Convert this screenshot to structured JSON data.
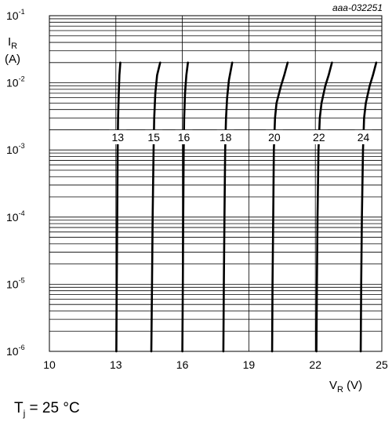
{
  "chart_data": {
    "type": "line",
    "figure_id": "aaa-032251",
    "condition_label": "T",
    "condition_sub": "j",
    "condition_value": " = 25 °C",
    "x_axis": {
      "label": "V",
      "label_sub": "R",
      "unit": "(V)",
      "range": [
        10,
        25
      ],
      "ticks": [
        10,
        13,
        16,
        19,
        22,
        25
      ]
    },
    "y_axis": {
      "label": "I",
      "label_sub": "R",
      "unit": "(A)",
      "scale": "log",
      "range": [
        1e-06,
        0.1
      ],
      "tick_base": "10",
      "tick_exponents": [
        "-6",
        "-5",
        "-4",
        "-3",
        "-2",
        "-1"
      ]
    },
    "grid": true,
    "series": [
      {
        "name": "13",
        "label_y": 0.00155,
        "points": [
          [
            13.02,
            1e-06
          ],
          [
            13.04,
            1e-05
          ],
          [
            13.06,
            0.0001
          ],
          [
            13.08,
            0.001
          ],
          [
            13.1,
            0.003
          ],
          [
            13.13,
            0.007
          ],
          [
            13.16,
            0.013
          ],
          [
            13.2,
            0.02
          ]
        ]
      },
      {
        "name": "15",
        "label_y": 0.00155,
        "points": [
          [
            14.6,
            1e-06
          ],
          [
            14.63,
            1e-05
          ],
          [
            14.66,
            0.0001
          ],
          [
            14.7,
            0.001
          ],
          [
            14.73,
            0.003
          ],
          [
            14.78,
            0.007
          ],
          [
            14.86,
            0.013
          ],
          [
            15.0,
            0.02
          ]
        ]
      },
      {
        "name": "16",
        "label_y": 0.00155,
        "points": [
          [
            16.0,
            1e-06
          ],
          [
            16.02,
            1e-05
          ],
          [
            16.04,
            0.0001
          ],
          [
            16.06,
            0.001
          ],
          [
            16.08,
            0.003
          ],
          [
            16.12,
            0.007
          ],
          [
            16.18,
            0.013
          ],
          [
            16.25,
            0.02
          ]
        ]
      },
      {
        "name": "18",
        "label_y": 0.00155,
        "points": [
          [
            17.85,
            1e-06
          ],
          [
            17.87,
            1e-05
          ],
          [
            17.9,
            0.0001
          ],
          [
            17.93,
            0.001
          ],
          [
            17.97,
            0.003
          ],
          [
            18.02,
            0.006
          ],
          [
            18.1,
            0.011
          ],
          [
            18.25,
            0.02
          ]
        ]
      },
      {
        "name": "20",
        "label_y": 0.00155,
        "points": [
          [
            20.05,
            1e-06
          ],
          [
            20.07,
            1e-05
          ],
          [
            20.1,
            0.0001
          ],
          [
            20.13,
            0.001
          ],
          [
            20.18,
            0.003
          ],
          [
            20.25,
            0.005
          ],
          [
            20.45,
            0.009
          ],
          [
            20.6,
            0.013
          ],
          [
            20.75,
            0.02
          ]
        ]
      },
      {
        "name": "22",
        "label_y": 0.00155,
        "points": [
          [
            22.05,
            1e-06
          ],
          [
            22.07,
            1e-05
          ],
          [
            22.1,
            0.0001
          ],
          [
            22.14,
            0.001
          ],
          [
            22.2,
            0.003
          ],
          [
            22.28,
            0.005
          ],
          [
            22.45,
            0.009
          ],
          [
            22.6,
            0.013
          ],
          [
            22.75,
            0.02
          ]
        ]
      },
      {
        "name": "24",
        "label_y": 0.00155,
        "points": [
          [
            24.05,
            1e-06
          ],
          [
            24.07,
            1e-05
          ],
          [
            24.1,
            0.0001
          ],
          [
            24.15,
            0.001
          ],
          [
            24.2,
            0.003
          ],
          [
            24.28,
            0.005
          ],
          [
            24.45,
            0.009
          ],
          [
            24.6,
            0.013
          ],
          [
            24.75,
            0.02
          ]
        ]
      }
    ]
  }
}
